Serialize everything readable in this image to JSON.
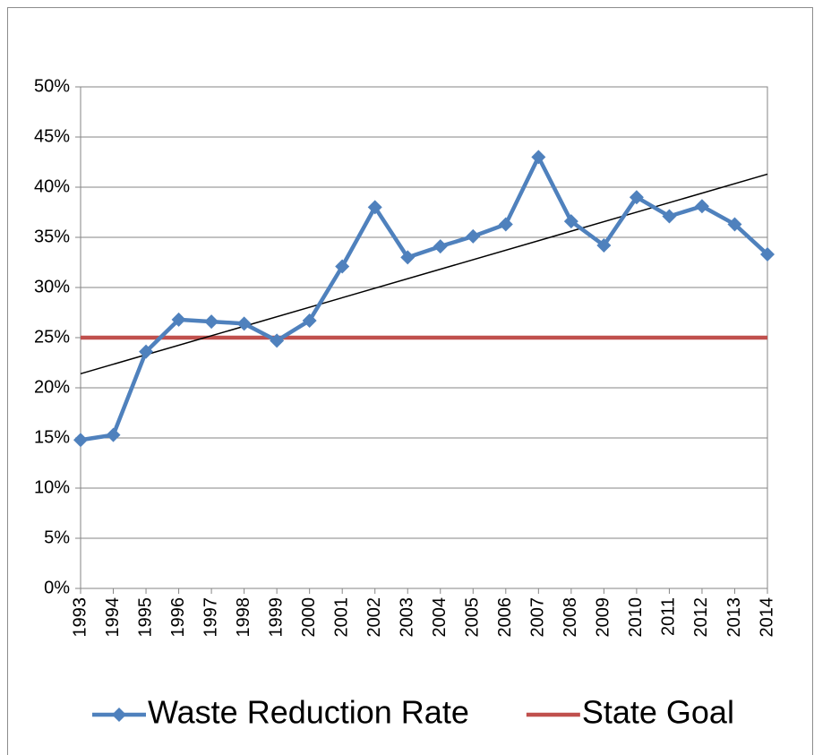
{
  "chart_data": {
    "type": "line",
    "categories": [
      "1993",
      "1994",
      "1995",
      "1996",
      "1997",
      "1998",
      "1999",
      "2000",
      "2001",
      "2002",
      "2003",
      "2004",
      "2005",
      "2006",
      "2007",
      "2008",
      "2009",
      "2010",
      "2011",
      "2012",
      "2013",
      "2014"
    ],
    "series": [
      {
        "name": "Waste Reduction Rate",
        "color": "#4f81bd",
        "marker": "diamond",
        "values": [
          14.8,
          15.3,
          23.6,
          26.8,
          26.6,
          26.4,
          24.7,
          26.7,
          32.1,
          38.0,
          33.0,
          34.1,
          35.1,
          36.3,
          43.0,
          36.6,
          34.2,
          39.0,
          37.1,
          38.1,
          36.3,
          33.3
        ]
      },
      {
        "name": "State Goal",
        "color": "#c0504d",
        "values": [
          25,
          25,
          25,
          25,
          25,
          25,
          25,
          25,
          25,
          25,
          25,
          25,
          25,
          25,
          25,
          25,
          25,
          25,
          25,
          25,
          25,
          25
        ]
      }
    ],
    "trendline": {
      "color": "#000000",
      "values": [
        21.4,
        41.3
      ]
    },
    "ylim": [
      0,
      50
    ],
    "yticks": [
      {
        "value": 0,
        "label": "0%"
      },
      {
        "value": 5,
        "label": "5%"
      },
      {
        "value": 10,
        "label": "10%"
      },
      {
        "value": 15,
        "label": "15%"
      },
      {
        "value": 20,
        "label": "20%"
      },
      {
        "value": 25,
        "label": "25%"
      },
      {
        "value": 30,
        "label": "30%"
      },
      {
        "value": 35,
        "label": "35%"
      },
      {
        "value": 40,
        "label": "40%"
      },
      {
        "value": 45,
        "label": "45%"
      },
      {
        "value": 50,
        "label": "50%"
      }
    ],
    "grid": true,
    "legend": "bottom"
  }
}
